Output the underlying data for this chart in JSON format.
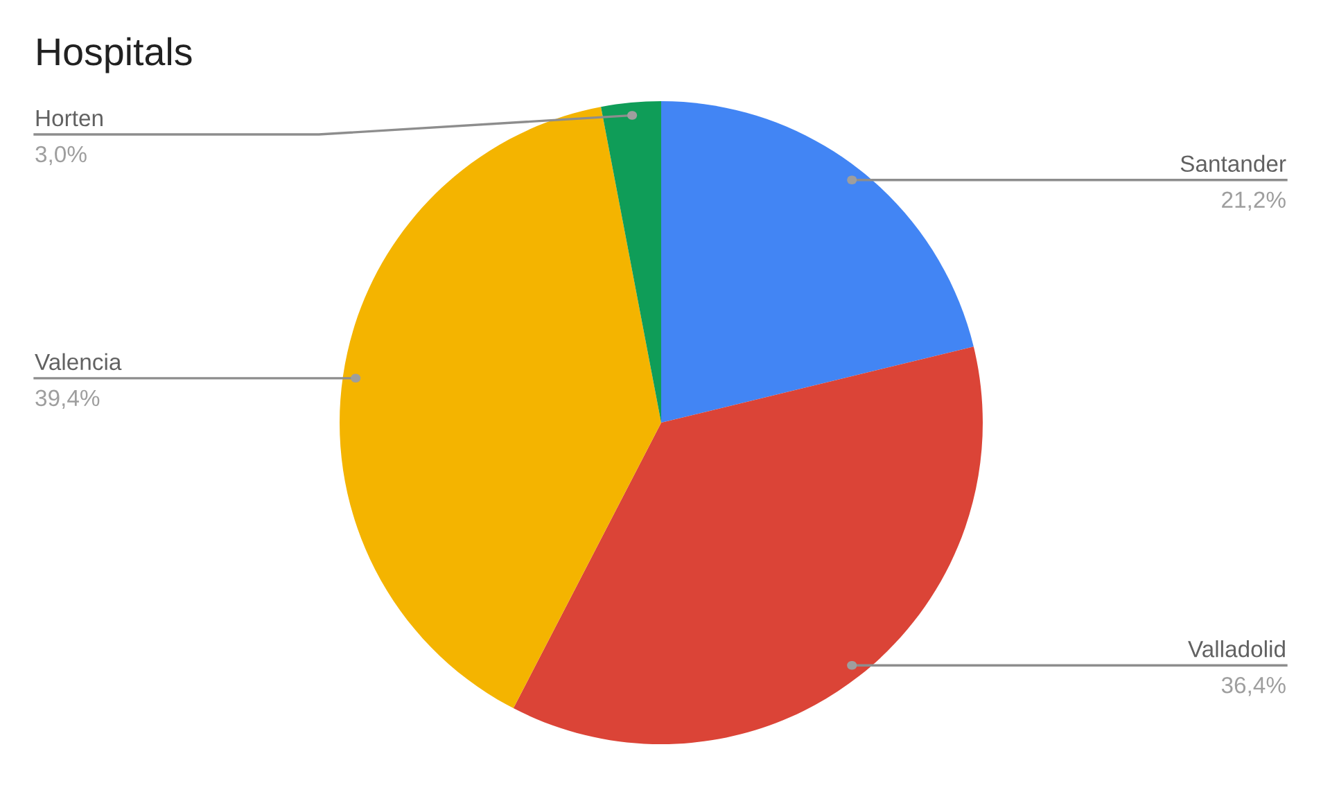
{
  "chart_data": {
    "type": "pie",
    "title": "Hospitals",
    "categories": [
      "Santander",
      "Valladolid",
      "Valencia",
      "Horten"
    ],
    "values": [
      21.2,
      36.4,
      39.4,
      3.0
    ],
    "value_labels": [
      "21,2%",
      "36,4%",
      "39,4%",
      "3,0%"
    ],
    "colors": [
      "#4285f4",
      "#db4437",
      "#f4b400",
      "#0f9d58"
    ]
  }
}
